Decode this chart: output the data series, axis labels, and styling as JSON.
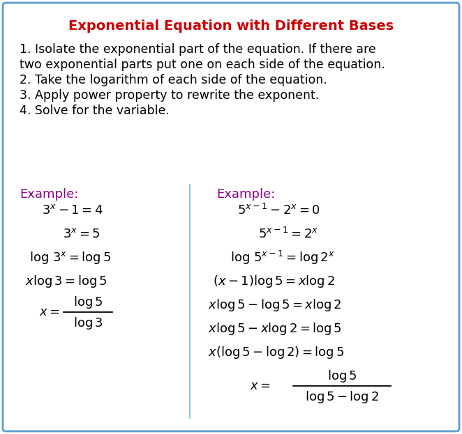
{
  "title": "Exponential Equation with Different Bases",
  "title_color": "#CC0000",
  "title_fontsize": 14,
  "steps_fontsize": 12.5,
  "steps": [
    "1. Isolate the exponential part of the equation. If there are",
    "two exponential parts put one on each side of the equation.",
    "2. Take the logarithm of each side of the equation.",
    "3. Apply power property to rewrite the exponent.",
    "4. Solve for the variable."
  ],
  "example_label_color": "#8B008B",
  "example_label_fontsize": 13,
  "math_fontsize": 13,
  "border_color": "#5B9BD5",
  "background_color": "#FFFFFF",
  "divider_color": "#87CEEB",
  "left_example_label": "Example:",
  "right_example_label": "Example:",
  "fig_width": 6.62,
  "fig_height": 6.23,
  "dpi": 100
}
